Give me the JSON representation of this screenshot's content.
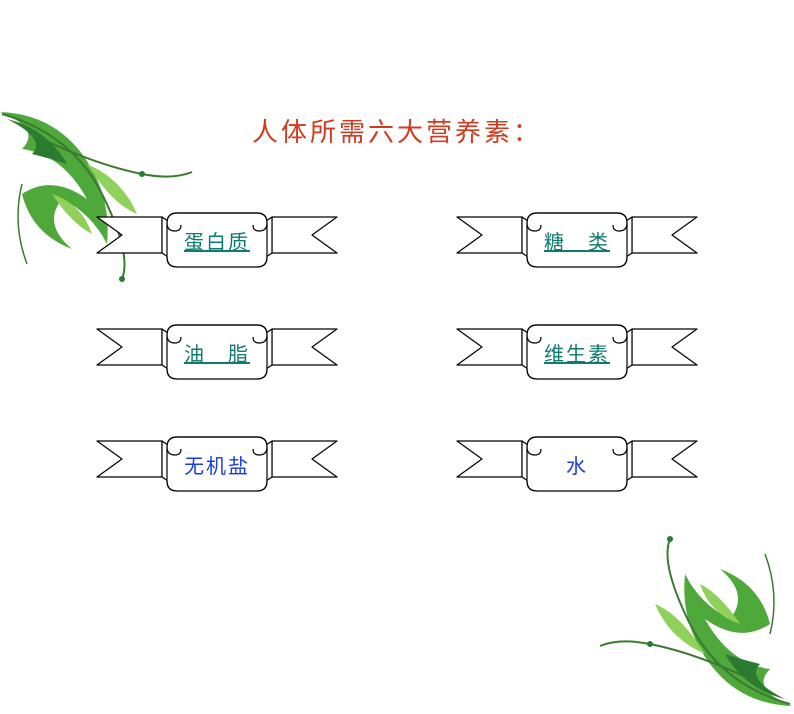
{
  "title": {
    "text": "人体所需六大营养素：",
    "color": "#d13b1f",
    "fontsize": 26
  },
  "layout": {
    "columns": 2,
    "rows": 3,
    "col_gap": 100,
    "row_gap": 50
  },
  "banner_style": {
    "stroke": "#000000",
    "stroke_width": 1.2,
    "fill": "#ffffff"
  },
  "link_color": "#0f7a6e",
  "plain_color": "#1a3fd6",
  "items": [
    {
      "label": "蛋白质",
      "is_link": true,
      "interactable": true
    },
    {
      "label": "糖　类",
      "is_link": true,
      "interactable": true
    },
    {
      "label": "油　脂",
      "is_link": true,
      "interactable": true
    },
    {
      "label": "维生素",
      "is_link": true,
      "interactable": true
    },
    {
      "label": "无机盐",
      "is_link": false,
      "interactable": false
    },
    {
      "label": "水",
      "is_link": false,
      "interactable": false
    }
  ],
  "decoration": {
    "leaf_dark": "#2a7a2f",
    "leaf_mid": "#4fa83a",
    "leaf_light": "#8fd15a",
    "vine": "#3a7a30"
  }
}
